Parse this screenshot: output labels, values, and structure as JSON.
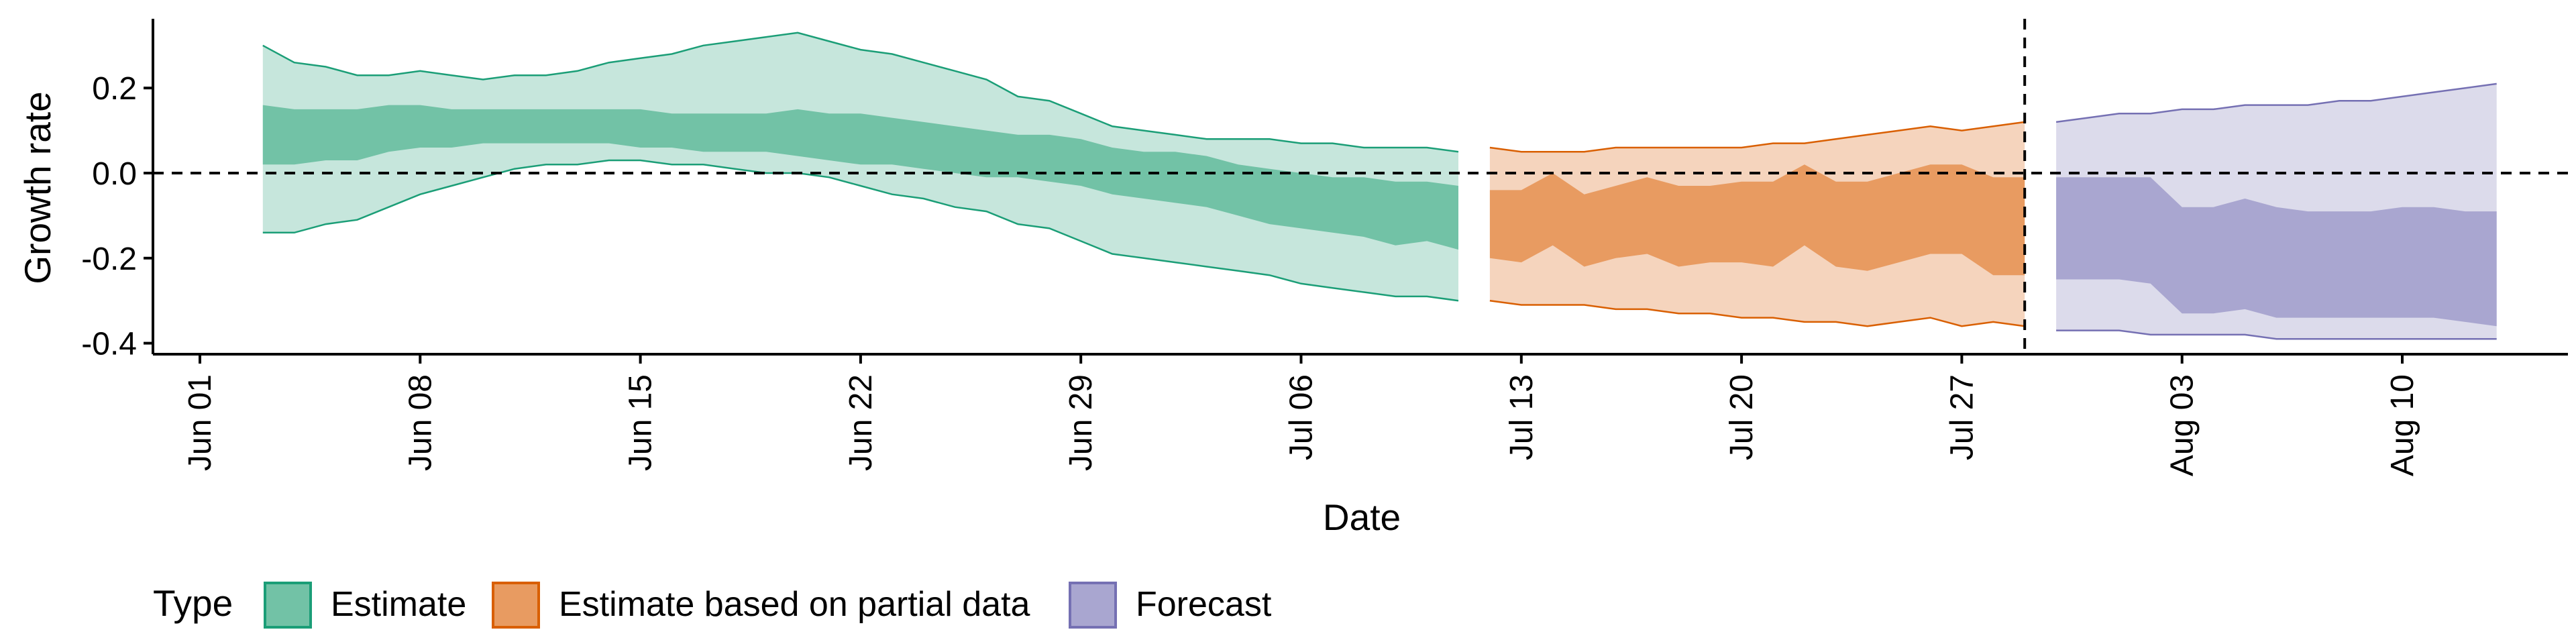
{
  "chart_data": {
    "type": "area",
    "title": "",
    "xlabel": "Date",
    "ylabel": "Growth rate",
    "x_tick_labels": [
      "Jun 01",
      "Jun 08",
      "Jun 15",
      "Jun 22",
      "Jun 29",
      "Jul 06",
      "Jul 13",
      "Jul 20",
      "Jul 27",
      "Aug 03",
      "Aug 10"
    ],
    "x_tick_dates": [
      "2020-06-01",
      "2020-06-08",
      "2020-06-15",
      "2020-06-22",
      "2020-06-29",
      "2020-07-06",
      "2020-07-13",
      "2020-07-20",
      "2020-07-27",
      "2020-08-03",
      "2020-08-10"
    ],
    "y_tick_labels": [
      "-0.4",
      "-0.2",
      "0.0",
      "0.2"
    ],
    "y_ticks": [
      -0.4,
      -0.2,
      0.0,
      0.2
    ],
    "xlim": [
      "2020-05-31",
      "2020-08-17"
    ],
    "ylim": [
      -0.42,
      0.36
    ],
    "grid": false,
    "reference_lines": [
      {
        "axis": "y",
        "value": 0.0,
        "style": "dashed"
      },
      {
        "axis": "x",
        "value": "2020-07-29",
        "style": "dashed"
      }
    ],
    "legend": {
      "title": "Type",
      "position": "bottom-left",
      "entries": [
        {
          "label": "Estimate",
          "fill": "#72c2a6",
          "stroke": "#1b9e77"
        },
        {
          "label": "Estimate based on partial data",
          "fill": "#e89b61",
          "stroke": "#d95f02"
        },
        {
          "label": "Forecast",
          "fill": "#a9a6d0",
          "stroke": "#7570b3"
        }
      ]
    },
    "series": [
      {
        "name": "Estimate",
        "color": "#1b9e77",
        "inner_fill": "#72c2a6",
        "outer_fill": "#c6e6dc",
        "x": [
          "2020-06-03",
          "2020-06-04",
          "2020-06-05",
          "2020-06-06",
          "2020-06-07",
          "2020-06-08",
          "2020-06-09",
          "2020-06-10",
          "2020-06-11",
          "2020-06-12",
          "2020-06-13",
          "2020-06-14",
          "2020-06-15",
          "2020-06-16",
          "2020-06-17",
          "2020-06-18",
          "2020-06-19",
          "2020-06-20",
          "2020-06-21",
          "2020-06-22",
          "2020-06-23",
          "2020-06-24",
          "2020-06-25",
          "2020-06-26",
          "2020-06-27",
          "2020-06-28",
          "2020-06-29",
          "2020-06-30",
          "2020-07-01",
          "2020-07-02",
          "2020-07-03",
          "2020-07-04",
          "2020-07-05",
          "2020-07-06",
          "2020-07-07",
          "2020-07-08",
          "2020-07-09",
          "2020-07-10",
          "2020-07-11"
        ],
        "outer_upper": [
          0.3,
          0.26,
          0.25,
          0.23,
          0.23,
          0.24,
          0.23,
          0.22,
          0.23,
          0.23,
          0.24,
          0.26,
          0.27,
          0.28,
          0.3,
          0.31,
          0.32,
          0.33,
          0.31,
          0.29,
          0.28,
          0.26,
          0.24,
          0.22,
          0.18,
          0.17,
          0.14,
          0.11,
          0.1,
          0.09,
          0.08,
          0.08,
          0.08,
          0.07,
          0.07,
          0.06,
          0.06,
          0.06,
          0.05
        ],
        "inner_upper": [
          0.16,
          0.15,
          0.15,
          0.15,
          0.16,
          0.16,
          0.15,
          0.15,
          0.15,
          0.15,
          0.15,
          0.15,
          0.15,
          0.14,
          0.14,
          0.14,
          0.14,
          0.15,
          0.14,
          0.14,
          0.13,
          0.12,
          0.11,
          0.1,
          0.09,
          0.09,
          0.08,
          0.06,
          0.05,
          0.05,
          0.04,
          0.02,
          0.01,
          0.0,
          -0.01,
          -0.01,
          -0.02,
          -0.02,
          -0.03
        ],
        "inner_lower": [
          0.02,
          0.02,
          0.03,
          0.03,
          0.05,
          0.06,
          0.06,
          0.07,
          0.07,
          0.07,
          0.07,
          0.07,
          0.06,
          0.06,
          0.05,
          0.05,
          0.05,
          0.04,
          0.03,
          0.02,
          0.02,
          0.01,
          0.0,
          -0.01,
          -0.01,
          -0.02,
          -0.03,
          -0.05,
          -0.06,
          -0.07,
          -0.08,
          -0.1,
          -0.12,
          -0.13,
          -0.14,
          -0.15,
          -0.17,
          -0.16,
          -0.18
        ],
        "outer_lower": [
          -0.14,
          -0.14,
          -0.12,
          -0.11,
          -0.08,
          -0.05,
          -0.03,
          -0.01,
          0.01,
          0.02,
          0.02,
          0.03,
          0.03,
          0.02,
          0.02,
          0.01,
          0.0,
          0.0,
          -0.01,
          -0.03,
          -0.05,
          -0.06,
          -0.08,
          -0.09,
          -0.12,
          -0.13,
          -0.16,
          -0.19,
          -0.2,
          -0.21,
          -0.22,
          -0.23,
          -0.24,
          -0.26,
          -0.27,
          -0.28,
          -0.29,
          -0.29,
          -0.3
        ]
      },
      {
        "name": "Estimate based on partial data",
        "color": "#d95f02",
        "inner_fill": "#e89b61",
        "outer_fill": "#f5d4bd",
        "x": [
          "2020-07-12",
          "2020-07-13",
          "2020-07-14",
          "2020-07-15",
          "2020-07-16",
          "2020-07-17",
          "2020-07-18",
          "2020-07-19",
          "2020-07-20",
          "2020-07-21",
          "2020-07-22",
          "2020-07-23",
          "2020-07-24",
          "2020-07-25",
          "2020-07-26",
          "2020-07-27",
          "2020-07-28",
          "2020-07-29"
        ],
        "outer_upper": [
          0.06,
          0.05,
          0.05,
          0.05,
          0.06,
          0.06,
          0.06,
          0.06,
          0.06,
          0.07,
          0.07,
          0.08,
          0.09,
          0.1,
          0.11,
          0.1,
          0.11,
          0.12
        ],
        "inner_upper": [
          -0.04,
          -0.04,
          0.0,
          -0.05,
          -0.03,
          -0.01,
          -0.03,
          -0.03,
          -0.02,
          -0.02,
          0.02,
          -0.02,
          -0.02,
          0.0,
          0.02,
          0.02,
          -0.01,
          -0.01
        ],
        "inner_lower": [
          -0.2,
          -0.21,
          -0.17,
          -0.22,
          -0.2,
          -0.19,
          -0.22,
          -0.21,
          -0.21,
          -0.22,
          -0.17,
          -0.22,
          -0.23,
          -0.21,
          -0.19,
          -0.19,
          -0.24,
          -0.24
        ],
        "outer_lower": [
          -0.3,
          -0.31,
          -0.31,
          -0.31,
          -0.32,
          -0.32,
          -0.33,
          -0.33,
          -0.34,
          -0.34,
          -0.35,
          -0.35,
          -0.36,
          -0.35,
          -0.34,
          -0.36,
          -0.35,
          -0.36
        ]
      },
      {
        "name": "Forecast",
        "color": "#7570b3",
        "inner_fill": "#a9a6d0",
        "outer_fill": "#dcdbeb",
        "x": [
          "2020-07-30",
          "2020-07-31",
          "2020-08-01",
          "2020-08-02",
          "2020-08-03",
          "2020-08-04",
          "2020-08-05",
          "2020-08-06",
          "2020-08-07",
          "2020-08-08",
          "2020-08-09",
          "2020-08-10",
          "2020-08-11",
          "2020-08-12",
          "2020-08-13"
        ],
        "outer_upper": [
          0.12,
          0.13,
          0.14,
          0.14,
          0.15,
          0.15,
          0.16,
          0.16,
          0.16,
          0.17,
          0.17,
          0.18,
          0.19,
          0.2,
          0.21
        ],
        "inner_upper": [
          -0.01,
          -0.01,
          -0.01,
          -0.01,
          -0.08,
          -0.08,
          -0.06,
          -0.08,
          -0.09,
          -0.09,
          -0.09,
          -0.08,
          -0.08,
          -0.09,
          -0.09
        ],
        "inner_lower": [
          -0.25,
          -0.25,
          -0.25,
          -0.26,
          -0.33,
          -0.33,
          -0.32,
          -0.34,
          -0.34,
          -0.34,
          -0.34,
          -0.34,
          -0.34,
          -0.35,
          -0.36
        ],
        "outer_lower": [
          -0.37,
          -0.37,
          -0.37,
          -0.38,
          -0.38,
          -0.38,
          -0.38,
          -0.39,
          -0.39,
          -0.39,
          -0.39,
          -0.39,
          -0.39,
          -0.39,
          -0.39
        ]
      }
    ]
  }
}
